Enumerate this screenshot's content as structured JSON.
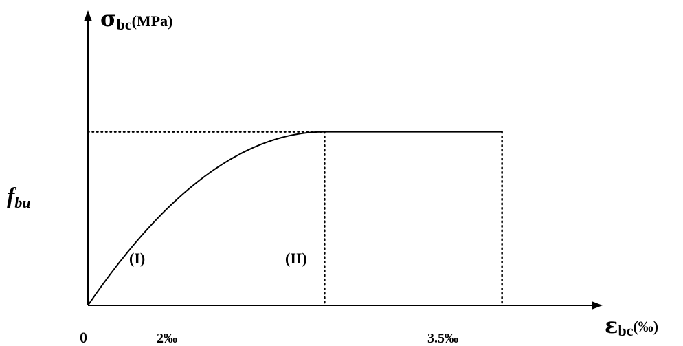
{
  "chart_data": {
    "type": "line",
    "title": "",
    "x_axis": {
      "symbol": "ε",
      "subscript": "bc",
      "unit": "(‰)"
    },
    "y_axis": {
      "symbol": "σ",
      "subscript": "bc",
      "unit": "(MPa)"
    },
    "y_level_label": {
      "main": "f",
      "subscript": "bu"
    },
    "x_ticks": [
      "0",
      "2‰",
      "3.5‰"
    ],
    "tick_values": [
      0,
      2,
      3.5
    ],
    "xlim": [
      0,
      4.35
    ],
    "ylim": [
      0,
      1.7
    ],
    "series": [
      {
        "segment": "parabola",
        "x": [
          0,
          0.25,
          0.5,
          0.75,
          1.0,
          1.25,
          1.5,
          1.75,
          2.0
        ],
        "y": [
          0,
          0.234,
          0.438,
          0.609,
          0.75,
          0.859,
          0.938,
          0.984,
          1.0
        ]
      },
      {
        "segment": "plateau",
        "x": [
          2.0,
          3.5
        ],
        "y": [
          1.0,
          1.0
        ]
      }
    ],
    "region_labels": [
      "(I)",
      "(II)"
    ],
    "grid": false,
    "legend": "none"
  }
}
